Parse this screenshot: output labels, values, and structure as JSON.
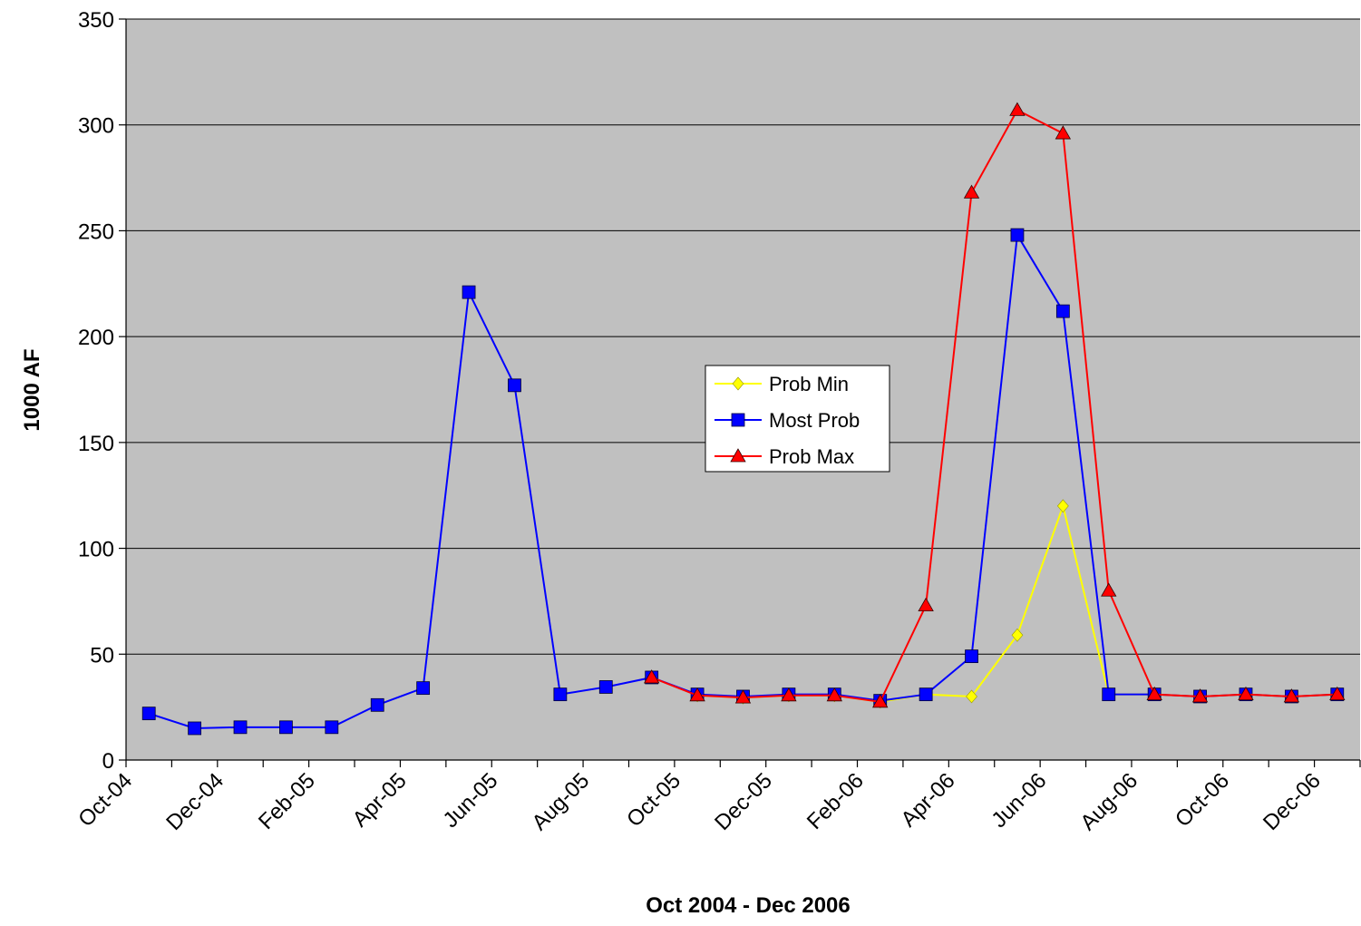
{
  "chart_data": {
    "type": "line",
    "title": "",
    "xlabel": "Oct 2004 - Dec 2006",
    "ylabel": "1000 AF",
    "ylim": [
      0,
      350
    ],
    "yticks": [
      0,
      50,
      100,
      150,
      200,
      250,
      300,
      350
    ],
    "grid": "horizontal",
    "legend_position": "center",
    "categories": [
      "Oct-04",
      "Nov-04",
      "Dec-04",
      "Jan-05",
      "Feb-05",
      "Mar-05",
      "Apr-05",
      "May-05",
      "Jun-05",
      "Jul-05",
      "Aug-05",
      "Sep-05",
      "Oct-05",
      "Nov-05",
      "Dec-05",
      "Jan-06",
      "Feb-06",
      "Mar-06",
      "Apr-06",
      "May-06",
      "Jun-06",
      "Jul-06",
      "Aug-06",
      "Sep-06",
      "Oct-06",
      "Nov-06",
      "Dec-06"
    ],
    "x_tick_labels": [
      "Oct-04",
      "Dec-04",
      "Feb-05",
      "Apr-05",
      "Jun-05",
      "Aug-05",
      "Oct-05",
      "Dec-05",
      "Feb-06",
      "Apr-06",
      "Jun-06",
      "Aug-06",
      "Oct-06",
      "Dec-06"
    ],
    "series": [
      {
        "name": "Prob Min",
        "color": "#FFFF00",
        "marker": "diamond",
        "values": [
          null,
          null,
          null,
          null,
          null,
          null,
          null,
          null,
          null,
          null,
          null,
          null,
          30.5,
          29.5,
          30.5,
          30.5,
          27.5,
          31,
          30,
          59,
          120,
          31,
          31,
          30,
          31,
          30,
          31
        ]
      },
      {
        "name": "Most Prob",
        "color": "#0000FF",
        "marker": "square",
        "values": [
          22,
          15,
          15.5,
          15.5,
          15.5,
          26,
          34,
          221,
          177,
          31,
          34.5,
          39,
          31,
          30,
          31,
          31,
          28,
          31,
          49,
          248,
          212,
          31,
          31,
          30,
          31,
          30,
          31
        ]
      },
      {
        "name": "Prob Max",
        "color": "#FF0000",
        "marker": "triangle",
        "values": [
          null,
          null,
          null,
          null,
          null,
          null,
          null,
          null,
          null,
          null,
          null,
          39,
          30.5,
          29.5,
          30.5,
          30.5,
          27.5,
          73,
          268,
          307,
          296,
          80,
          31,
          30,
          31,
          30,
          31
        ]
      }
    ]
  }
}
